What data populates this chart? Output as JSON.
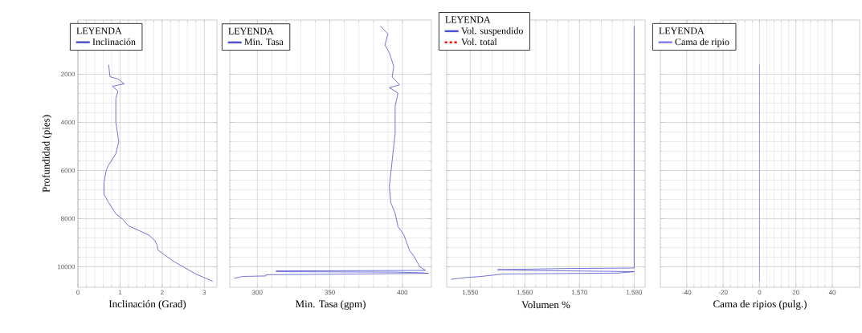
{
  "chart_data": [
    {
      "type": "line",
      "xlabel": "Inclinación (Grad)",
      "ylabel": "Profundidad (pies)",
      "legend_title": "LEYENDA",
      "legend": "top left",
      "grid": true,
      "xlim": [
        0,
        3.3
      ],
      "xticks": [
        0,
        1,
        2,
        3
      ],
      "ylim": [
        10850,
        -250
      ],
      "yticks": [
        2000,
        4000,
        6000,
        8000,
        10000
      ],
      "series": [
        {
          "name": "Inclinación",
          "color": "#5050d0",
          "x": [
            0.73,
            0.76,
            0.95,
            1.1,
            0.82,
            0.95,
            0.9,
            0.9,
            0.97,
            0.9,
            0.72,
            0.67,
            0.62,
            0.62,
            0.72,
            0.9,
            1.05,
            1.2,
            1.46,
            1.7,
            1.82,
            1.88,
            1.9,
            2.05,
            2.3,
            2.5,
            2.8,
            3.2
          ],
          "values": [
            1600,
            2100,
            2200,
            2400,
            2500,
            2700,
            3000,
            4000,
            4800,
            5300,
            5800,
            6000,
            6500,
            7000,
            7300,
            7800,
            8000,
            8300,
            8500,
            8700,
            8900,
            9100,
            9300,
            9500,
            9800,
            10000,
            10300,
            10600
          ]
        }
      ]
    },
    {
      "type": "line",
      "xlabel": "Min. Tasa  (gpm)",
      "legend_title": "LEYENDA",
      "legend": "top left",
      "grid": true,
      "tick_labels": "x",
      "xlim": [
        281,
        420
      ],
      "xticks": [
        300,
        350,
        400
      ],
      "ylim": [
        10850,
        -250
      ],
      "yticks": [
        2000,
        4000,
        6000,
        8000,
        10000
      ],
      "series": [
        {
          "name": "Min. Tasa",
          "color": "#5050d0",
          "x": [
            385,
            390,
            388,
            391,
            394,
            393,
            398,
            391,
            397,
            395,
            395,
            393,
            391,
            392,
            395,
            397,
            401,
            405,
            408,
            412,
            416,
            313,
            313,
            395,
            410,
            418,
            365,
            306,
            306,
            290,
            284
          ],
          "values": [
            0,
            330,
            780,
            1110,
            1670,
            2110,
            2440,
            2560,
            2780,
            3330,
            4440,
            5560,
            6670,
            7330,
            7780,
            8330,
            8670,
            9330,
            9560,
            10000,
            10150,
            10170,
            10200,
            10220,
            10240,
            10270,
            10300,
            10330,
            10380,
            10400,
            10480
          ]
        }
      ]
    },
    {
      "type": "line",
      "xlabel": "Volumen %",
      "legend_title": "LEYENDA",
      "legend": "top left",
      "grid": true,
      "tick_labels": "x",
      "xlim": [
        1545.7,
        1582
      ],
      "xticks": [
        {
          "value": 1550,
          "label": "1,550"
        },
        {
          "value": 1560,
          "label": "1,560"
        },
        {
          "value": 1570,
          "label": "1,570"
        },
        {
          "value": 1580,
          "label": "1,580"
        }
      ],
      "ylim": [
        10850,
        -250
      ],
      "yticks": [
        2000,
        4000,
        6000,
        8000,
        10000
      ],
      "series": [
        {
          "name": "Vol. suspendido",
          "color": "#5050d0",
          "x": [
            1580,
            1580,
            1568,
            1555,
            1560,
            1580,
            1577,
            1556,
            1552,
            1549,
            1546.5
          ],
          "values": [
            0,
            10050,
            10070,
            10120,
            10150,
            10200,
            10260,
            10300,
            10400,
            10450,
            10520
          ]
        },
        {
          "name": "Vol. total",
          "color": "#ff0000",
          "line_style": "dashed",
          "x": [
            null,
            null
          ],
          "values": [
            null,
            null
          ]
        }
      ]
    },
    {
      "type": "line",
      "xlabel": "Cama de ripios (pulg.)",
      "legend_title": "LEYENDA",
      "legend": "top left",
      "grid": true,
      "tick_labels": "x",
      "xlim": [
        -54.5,
        55
      ],
      "xticks": [
        -40,
        -20,
        0,
        20,
        40
      ],
      "ylim": [
        10850,
        -250
      ],
      "yticks": [
        2000,
        4000,
        6000,
        8000,
        10000
      ],
      "series": [
        {
          "name": "Cama de ripio",
          "color": "#8080e8",
          "x": [
            0,
            0
          ],
          "values": [
            1600,
            10600
          ]
        }
      ]
    }
  ]
}
